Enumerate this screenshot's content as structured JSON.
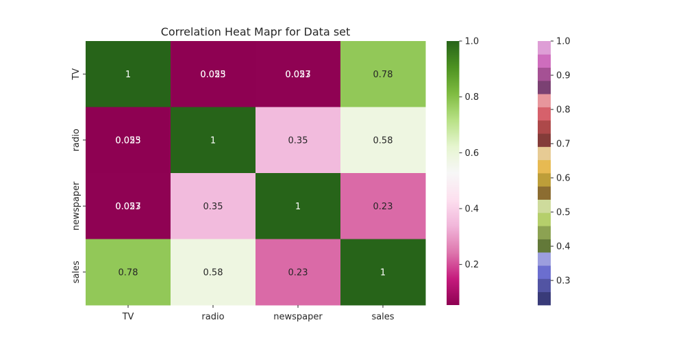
{
  "chart_data": [
    {
      "type": "heatmap",
      "title": "Correlation Heat Mapr for Data set",
      "x_categories": [
        "TV",
        "radio",
        "newspaper",
        "sales"
      ],
      "y_categories": [
        "TV",
        "radio",
        "newspaper",
        "sales"
      ],
      "values": [
        [
          1,
          0.055,
          0.057,
          0.78
        ],
        [
          0.055,
          1,
          0.35,
          0.58
        ],
        [
          0.057,
          0.35,
          1,
          0.23
        ],
        [
          0.78,
          0.58,
          0.23,
          1
        ]
      ],
      "cell_labels": [
        [
          "1",
          "0.055",
          "0.057",
          "0.78"
        ],
        [
          "0.055",
          "1",
          "0.35",
          "0.58"
        ],
        [
          "0.057",
          "0.35",
          "1",
          "0.23"
        ],
        [
          "0.78",
          "0.58",
          "0.23",
          "1"
        ]
      ],
      "overlap_label": "0.023",
      "colormap": "PiYG",
      "colorbar": {
        "range": [
          0.0546,
          1.0
        ],
        "ticks": [
          0.2,
          0.4,
          0.6,
          0.8,
          1.0
        ],
        "tick_labels": [
          "0.2",
          "0.4",
          "0.6",
          "0.8",
          "1.0"
        ]
      }
    },
    {
      "type": "colorbar",
      "colormap": "tab20b",
      "range": [
        0.228,
        1.0
      ],
      "ticks": [
        0.3,
        0.4,
        0.5,
        0.6,
        0.7,
        0.8,
        0.9,
        1.0
      ],
      "tick_labels": [
        "0.3",
        "0.4",
        "0.5",
        "0.6",
        "0.7",
        "0.8",
        "0.9",
        "1.0"
      ],
      "colors": [
        "#393b79",
        "#5254a3",
        "#6b6ecf",
        "#9c9ede",
        "#637939",
        "#8ca252",
        "#b5cf6b",
        "#cedb9c",
        "#8c6d31",
        "#bd9e39",
        "#e7ba52",
        "#e7cb94",
        "#843c39",
        "#ad494a",
        "#d6616b",
        "#e7969c",
        "#7b4173",
        "#a55194",
        "#ce6dbd",
        "#de9ed6"
      ]
    }
  ]
}
